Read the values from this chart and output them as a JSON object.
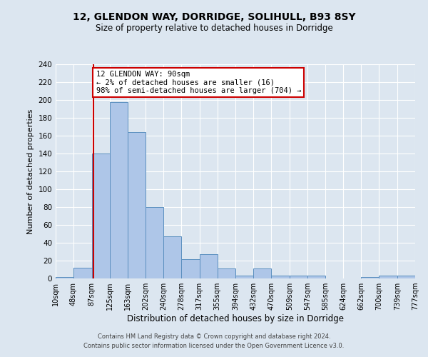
{
  "title": "12, GLENDON WAY, DORRIDGE, SOLIHULL, B93 8SY",
  "subtitle": "Size of property relative to detached houses in Dorridge",
  "xlabel": "Distribution of detached houses by size in Dorridge",
  "ylabel": "Number of detached properties",
  "bin_edges": [
    10,
    48,
    87,
    125,
    163,
    202,
    240,
    278,
    317,
    355,
    394,
    432,
    470,
    509,
    547,
    585,
    624,
    662,
    700,
    739,
    777
  ],
  "bar_heights": [
    2,
    12,
    140,
    198,
    164,
    80,
    47,
    22,
    27,
    11,
    3,
    11,
    3,
    3,
    3,
    0,
    0,
    2,
    3,
    3
  ],
  "bar_color": "#aec6e8",
  "bar_edge_color": "#5a8fbf",
  "vline_x": 90,
  "vline_color": "#cc0000",
  "annotation_line1": "12 GLENDON WAY: 90sqm",
  "annotation_line2": "← 2% of detached houses are smaller (16)",
  "annotation_line3": "98% of semi-detached houses are larger (704) →",
  "annotation_box_color": "#cc0000",
  "ylim": [
    0,
    240
  ],
  "yticks": [
    0,
    20,
    40,
    60,
    80,
    100,
    120,
    140,
    160,
    180,
    200,
    220,
    240
  ],
  "tick_labels": [
    "10sqm",
    "48sqm",
    "87sqm",
    "125sqm",
    "163sqm",
    "202sqm",
    "240sqm",
    "278sqm",
    "317sqm",
    "355sqm",
    "394sqm",
    "432sqm",
    "470sqm",
    "509sqm",
    "547sqm",
    "585sqm",
    "624sqm",
    "662sqm",
    "700sqm",
    "739sqm",
    "777sqm"
  ],
  "footer_line1": "Contains HM Land Registry data © Crown copyright and database right 2024.",
  "footer_line2": "Contains public sector information licensed under the Open Government Licence v3.0.",
  "background_color": "#dce6f0",
  "plot_bg_color": "#dce6f0"
}
